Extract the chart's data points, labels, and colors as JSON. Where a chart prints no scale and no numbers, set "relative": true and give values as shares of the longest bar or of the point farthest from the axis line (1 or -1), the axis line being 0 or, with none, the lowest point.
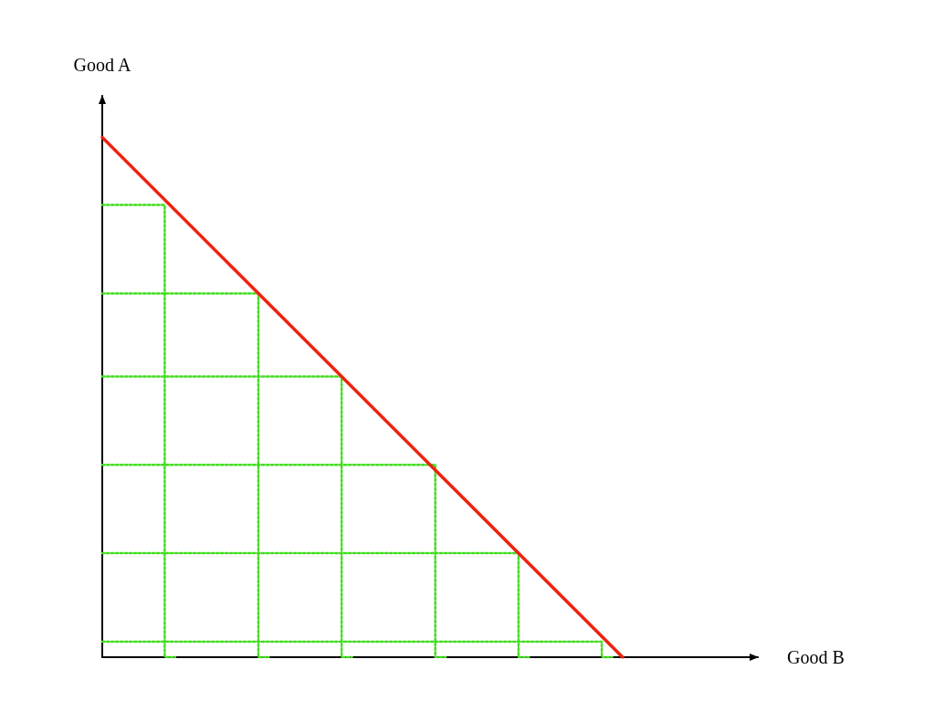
{
  "chart_data": {
    "type": "line",
    "relative": true,
    "xlabel": "Good B",
    "ylabel": "Good A",
    "marker": "none",
    "line_style": "solid",
    "grid": false,
    "categories": [
      null,
      null,
      null,
      null,
      null,
      null,
      null,
      null,
      null,
      null,
      null,
      null,
      null,
      null,
      null,
      null,
      null,
      null,
      null,
      null,
      null,
      null,
      null,
      null,
      null,
      null,
      null,
      null,
      null,
      null,
      null,
      null,
      null,
      null,
      null,
      null,
      null,
      null,
      null,
      null,
      null,
      null,
      null,
      null,
      null,
      null,
      null,
      null,
      null,
      null,
      null,
      null,
      null,
      null,
      null,
      null,
      null,
      null,
      null,
      null,
      null,
      null,
      null,
      null
    ],
    "series": [
      {
        "type": "step",
        "color": "#44dd22",
        "line_style": "dotted",
        "values": [
          0.87,
          null,
          null,
          null,
          null,
          null,
          0.87,
          0,
          null,
          null,
          null,
          null,
          null,
          null,
          null,
          null,
          null,
          null,
          null,
          null,
          null,
          null,
          null,
          null,
          null,
          null,
          null,
          null,
          null,
          null,
          null,
          null,
          null,
          null,
          null,
          null,
          null,
          null,
          null,
          null,
          null,
          null,
          null,
          null,
          null,
          null,
          null,
          null,
          null,
          null,
          null,
          null,
          null,
          null,
          null,
          null,
          null,
          null,
          null,
          null,
          null,
          null,
          null,
          null
        ]
      },
      {
        "type": "step",
        "color": "#44dd22",
        "line_style": "dotted",
        "values": [
          0.7,
          null,
          null,
          null,
          null,
          null,
          null,
          null,
          null,
          null,
          null,
          null,
          null,
          null,
          null,
          0.7,
          0,
          null,
          null,
          null,
          null,
          null,
          null,
          null,
          null,
          null,
          null,
          null,
          null,
          null,
          null,
          null,
          null,
          null,
          null,
          null,
          null,
          null,
          null,
          null,
          null,
          null,
          null,
          null,
          null,
          null,
          null,
          null,
          null,
          null,
          null,
          null,
          null,
          null,
          null,
          null,
          null,
          null,
          null,
          null,
          null,
          null,
          null,
          null
        ]
      },
      {
        "type": "step",
        "color": "#44dd22",
        "line_style": "dotted",
        "values": [
          0.54,
          null,
          null,
          null,
          null,
          null,
          null,
          null,
          null,
          null,
          null,
          null,
          null,
          null,
          null,
          null,
          null,
          null,
          null,
          null,
          null,
          null,
          null,
          0.54,
          0,
          null,
          null,
          null,
          null,
          null,
          null,
          null,
          null,
          null,
          null,
          null,
          null,
          null,
          null,
          null,
          null,
          null,
          null,
          null,
          null,
          null,
          null,
          null,
          null,
          null,
          null,
          null,
          null,
          null,
          null,
          null,
          null,
          null,
          null,
          null,
          null,
          null,
          null,
          null
        ]
      },
      {
        "type": "step",
        "color": "#44dd22",
        "line_style": "dotted",
        "values": [
          0.37,
          null,
          null,
          null,
          null,
          null,
          null,
          null,
          null,
          null,
          null,
          null,
          null,
          null,
          null,
          null,
          null,
          null,
          null,
          null,
          null,
          null,
          null,
          null,
          null,
          null,
          null,
          null,
          null,
          null,
          null,
          null,
          0.37,
          0,
          null,
          null,
          null,
          null,
          null,
          null,
          null,
          null,
          null,
          null,
          null,
          null,
          null,
          null,
          null,
          null,
          null,
          null,
          null,
          null,
          null,
          null,
          null,
          null,
          null,
          null,
          null,
          null,
          null,
          null
        ]
      },
      {
        "type": "step",
        "color": "#44dd22",
        "line_style": "dotted",
        "values": [
          0.2,
          null,
          null,
          null,
          null,
          null,
          null,
          null,
          null,
          null,
          null,
          null,
          null,
          null,
          null,
          null,
          null,
          null,
          null,
          null,
          null,
          null,
          null,
          null,
          null,
          null,
          null,
          null,
          null,
          null,
          null,
          null,
          null,
          null,
          null,
          null,
          null,
          null,
          null,
          null,
          0.2,
          0,
          null,
          null,
          null,
          null,
          null,
          null,
          null,
          null,
          null,
          null,
          null,
          null,
          null,
          null,
          null,
          null,
          null,
          null,
          null,
          null,
          null,
          null
        ]
      },
      {
        "type": "step",
        "color": "#44dd22",
        "line_style": "dotted",
        "values": [
          0.03,
          null,
          null,
          null,
          null,
          null,
          null,
          null,
          null,
          null,
          null,
          null,
          null,
          null,
          null,
          null,
          null,
          null,
          null,
          null,
          null,
          null,
          null,
          null,
          null,
          null,
          null,
          null,
          null,
          null,
          null,
          null,
          null,
          null,
          null,
          null,
          null,
          null,
          null,
          null,
          null,
          null,
          null,
          null,
          null,
          null,
          null,
          null,
          0.03,
          0,
          null,
          null,
          null,
          null,
          null,
          null,
          null,
          null,
          null,
          null,
          null,
          null,
          null,
          null
        ]
      },
      {
        "color": "#ee2211",
        "values": [
          1,
          null,
          null,
          null,
          null,
          null,
          null,
          null,
          null,
          null,
          null,
          null,
          null,
          null,
          null,
          null,
          null,
          null,
          null,
          null,
          null,
          null,
          null,
          null,
          null,
          null,
          null,
          null,
          null,
          null,
          null,
          null,
          null,
          null,
          null,
          null,
          null,
          null,
          null,
          null,
          null,
          null,
          null,
          null,
          null,
          null,
          null,
          null,
          null,
          null,
          0,
          null,
          null,
          null,
          null,
          null,
          null,
          null,
          null,
          null,
          null,
          null,
          null,
          null
        ]
      }
    ]
  }
}
